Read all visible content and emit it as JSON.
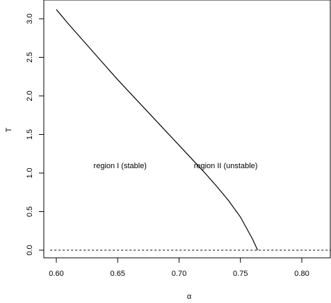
{
  "chart_data": {
    "type": "line",
    "title": "",
    "xlabel": "α",
    "ylabel": "T",
    "xlim": [
      0.6,
      0.83
    ],
    "ylim": [
      0.0,
      3.15
    ],
    "x_ticks": [
      0.6,
      0.65,
      0.7,
      0.75,
      0.8
    ],
    "x_tick_labels": [
      "0.60",
      "0.65",
      "0.70",
      "0.75",
      "0.80"
    ],
    "y_ticks": [
      0.0,
      0.5,
      1.0,
      1.5,
      2.0,
      2.5,
      3.0
    ],
    "y_tick_labels": [
      "0.0",
      "0.5",
      "1.0",
      "1.5",
      "2.0",
      "2.5",
      "3.0"
    ],
    "grid": false,
    "series": [
      {
        "style": "solid",
        "color": "#000000",
        "x": [
          0.6,
          0.61,
          0.62,
          0.63,
          0.64,
          0.65,
          0.66,
          0.67,
          0.68,
          0.69,
          0.7,
          0.71,
          0.72,
          0.73,
          0.74,
          0.75,
          0.76,
          0.764
        ],
        "y": [
          3.12,
          2.93,
          2.75,
          2.57,
          2.39,
          2.21,
          2.04,
          1.87,
          1.7,
          1.53,
          1.36,
          1.19,
          1.02,
          0.84,
          0.65,
          0.43,
          0.14,
          0.0
        ]
      },
      {
        "style": "dashed",
        "color": "#000000",
        "x": [
          0.595,
          0.83
        ],
        "y": [
          0.0,
          0.0
        ]
      }
    ],
    "annotations": [
      {
        "text": "region I (stable)",
        "x": 0.652,
        "y": 1.1
      },
      {
        "text": "region II (unstable)",
        "x": 0.738,
        "y": 1.1
      }
    ]
  }
}
